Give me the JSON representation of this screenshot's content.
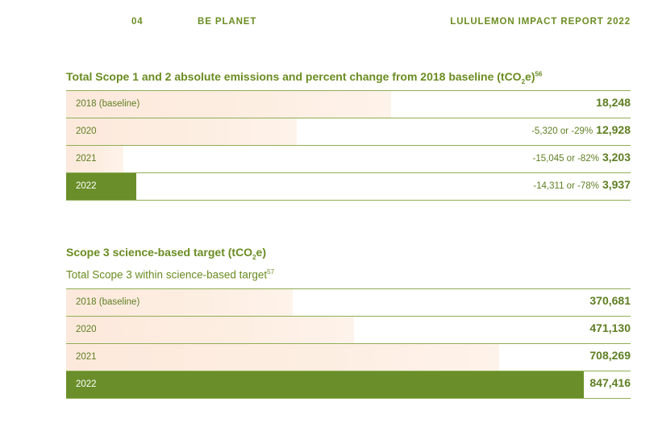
{
  "header": {
    "page_number": "04",
    "section": "BE PLANET",
    "report": "LULULEMON IMPACT REPORT 2022"
  },
  "chart_data": [
    {
      "type": "bar",
      "title": "Total Scope 1 and 2 absolute emissions and percent change from 2018 baseline (tCO2e)",
      "footnote": "56",
      "categories": [
        "2018 (baseline)",
        "2020",
        "2021",
        "2022"
      ],
      "values": [
        18248,
        12928,
        3203,
        3937
      ],
      "value_labels": [
        "18,248",
        "12,928",
        "3,203",
        "3,937"
      ],
      "change_labels": [
        "",
        "-5,320 or -29%",
        "-15,045 or -82%",
        "-14,311 or -78%"
      ],
      "highlight": "2022",
      "colors": {
        "bar": "#fde9dc",
        "highlight": "#6a8f2a",
        "text": "#5e7e22"
      }
    },
    {
      "type": "bar",
      "title": "Scope 3 science-based target (tCO2e)",
      "subtitle": "Total Scope 3 within science-based target",
      "footnote": "57",
      "categories": [
        "2018 (baseline)",
        "2020",
        "2021",
        "2022"
      ],
      "values": [
        370681,
        471130,
        708269,
        847416
      ],
      "value_labels": [
        "370,681",
        "471,130",
        "708,269",
        "847,416"
      ],
      "highlight": "2022",
      "colors": {
        "bar": "#fde9dc",
        "highlight": "#6a8f2a",
        "text": "#5e7e22"
      }
    }
  ]
}
